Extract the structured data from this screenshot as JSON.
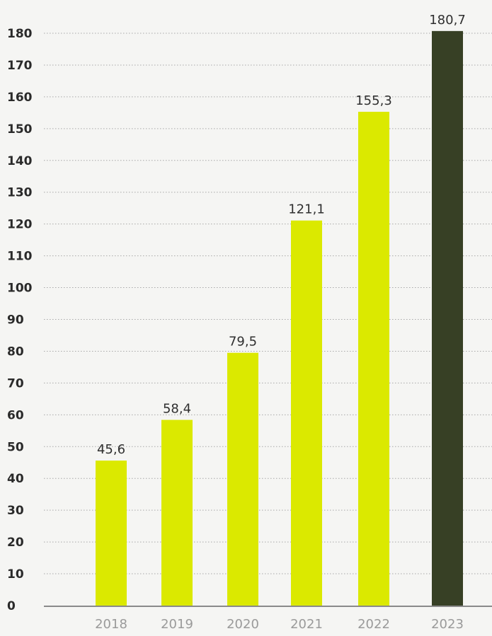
{
  "chart_data": {
    "type": "bar",
    "categories": [
      "2018",
      "2019",
      "2020",
      "2021",
      "2022",
      "2023"
    ],
    "values": [
      45.6,
      58.4,
      79.5,
      121.1,
      155.3,
      180.7
    ],
    "value_labels": [
      "45,6",
      "58,4",
      "79,5",
      "121,1",
      "155,3",
      "180,7"
    ],
    "yticks": [
      0,
      10,
      20,
      30,
      40,
      50,
      60,
      70,
      80,
      90,
      100,
      110,
      120,
      130,
      140,
      150,
      160,
      170,
      180
    ],
    "ylim": [
      0,
      180
    ],
    "grid": true,
    "colors": {
      "bar": "#dbe900",
      "highlight_bar": "#374025",
      "highlight_index": 5
    }
  }
}
